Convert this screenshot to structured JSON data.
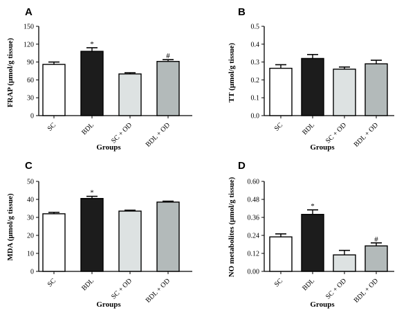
{
  "chart_data": [
    {
      "type": "bar",
      "panel": "A",
      "ylabel": "FRAP (μmol/g tissue)",
      "xlabel": "Groups",
      "categories": [
        "SC",
        "BDL",
        "SC + OD",
        "BDL + OD"
      ],
      "values": [
        86,
        108,
        70,
        91
      ],
      "errors": [
        4,
        6,
        2,
        3
      ],
      "markers": [
        "",
        "*",
        "",
        "#"
      ],
      "ylim": [
        0,
        150
      ],
      "yticks": [
        "0",
        "30",
        "60",
        "90",
        "120",
        "150"
      ],
      "colors": [
        "#ffffff",
        "#1c1c1c",
        "#dde2e2",
        "#b3baba"
      ],
      "grid": false
    },
    {
      "type": "bar",
      "panel": "B",
      "ylabel": "TT (μmol/g tissue)",
      "xlabel": "Groups",
      "categories": [
        "SC",
        "BDL",
        "SC + OD",
        "BDL + OD"
      ],
      "values": [
        0.265,
        0.32,
        0.26,
        0.29
      ],
      "errors": [
        0.02,
        0.022,
        0.012,
        0.02
      ],
      "markers": [
        "",
        "",
        "",
        ""
      ],
      "ylim": [
        0,
        0.5
      ],
      "yticks": [
        "0.0",
        "0.1",
        "0.2",
        "0.3",
        "0.4",
        "0.5"
      ],
      "colors": [
        "#ffffff",
        "#1c1c1c",
        "#dde2e2",
        "#b3baba"
      ],
      "grid": false
    },
    {
      "type": "bar",
      "panel": "C",
      "ylabel": "MDA (μmol/g tissue)",
      "xlabel": "Groups",
      "categories": [
        "SC",
        "BDL",
        "SC + OD",
        "BDL + OD"
      ],
      "values": [
        32,
        40.5,
        33.5,
        38.5
      ],
      "errors": [
        0.8,
        1.2,
        0.5,
        0.5
      ],
      "markers": [
        "",
        "*",
        "",
        ""
      ],
      "ylim": [
        0,
        50
      ],
      "yticks": [
        "0",
        "10",
        "20",
        "30",
        "40",
        "50"
      ],
      "colors": [
        "#ffffff",
        "#1c1c1c",
        "#dde2e2",
        "#b3baba"
      ],
      "grid": false
    },
    {
      "type": "bar",
      "panel": "D",
      "ylabel": "NO metabolites (μmol/g tissue)",
      "xlabel": "Groups",
      "categories": [
        "SC",
        "BDL",
        "SC + OD",
        "BDL + OD"
      ],
      "values": [
        0.23,
        0.38,
        0.11,
        0.17
      ],
      "errors": [
        0.02,
        0.03,
        0.03,
        0.02
      ],
      "markers": [
        "",
        "*",
        "",
        "#"
      ],
      "ylim": [
        0,
        0.6
      ],
      "yticks": [
        "0.00",
        "0.12",
        "0.24",
        "0.36",
        "0.48",
        "0.60"
      ],
      "colors": [
        "#ffffff",
        "#1c1c1c",
        "#dde2e2",
        "#b3baba"
      ],
      "grid": false
    }
  ]
}
